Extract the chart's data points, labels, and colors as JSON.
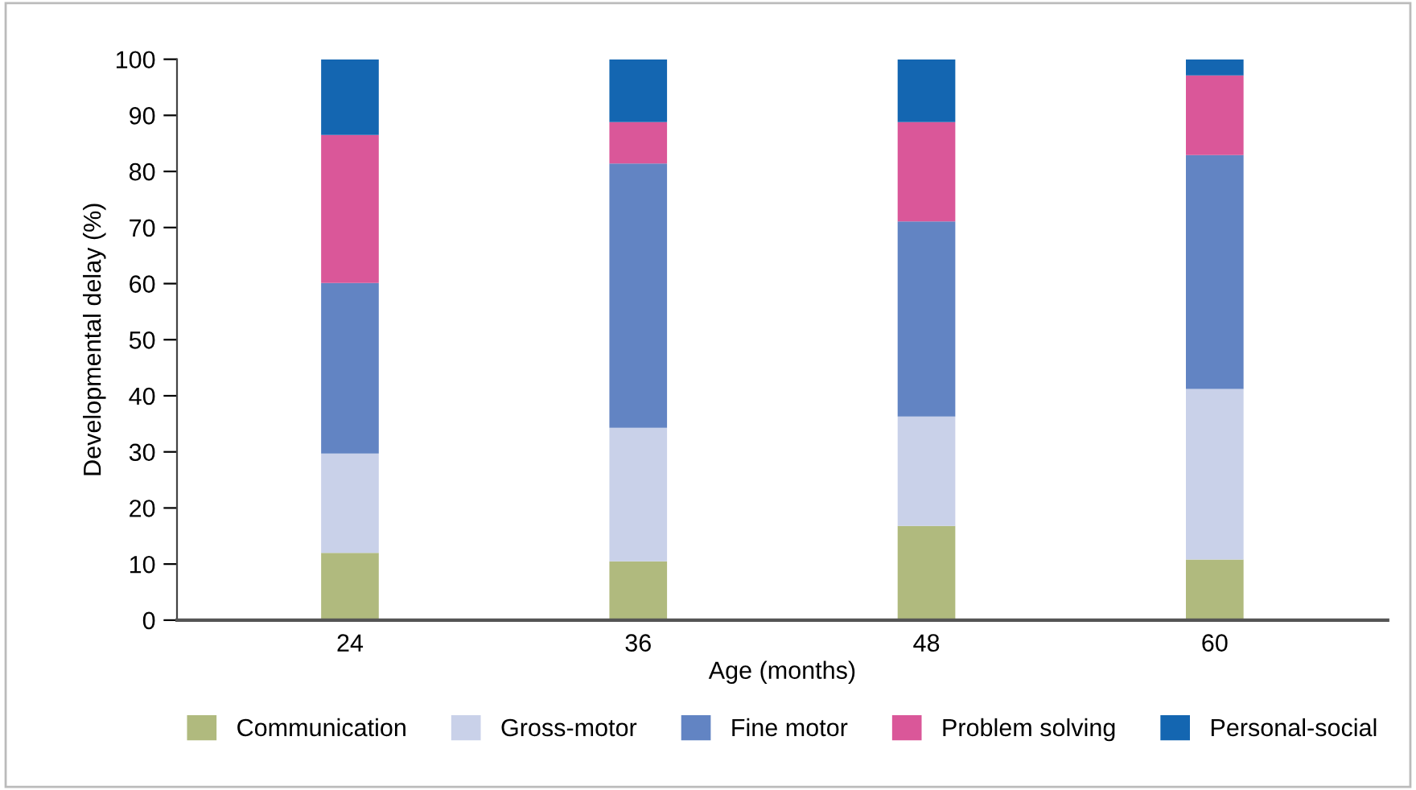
{
  "chart_data": {
    "type": "bar",
    "stacked": true,
    "xlabel": "Age (months)",
    "ylabel": "Developmental delay (%)",
    "categories": [
      "24",
      "36",
      "48",
      "60"
    ],
    "series": [
      {
        "name": "Communication",
        "color": "#b0ba7e",
        "values": [
          12.0,
          10.5,
          16.8,
          10.8
        ]
      },
      {
        "name": "Gross-motor",
        "color": "#c9d1e9",
        "values": [
          17.7,
          23.8,
          19.5,
          30.4
        ]
      },
      {
        "name": "Fine motor",
        "color": "#6284c3",
        "values": [
          30.4,
          47.1,
          34.8,
          41.7
        ]
      },
      {
        "name": "Problem solving",
        "color": "#da5799",
        "values": [
          26.4,
          7.4,
          17.7,
          14.2
        ]
      },
      {
        "name": "Personal-social",
        "color": "#1466b1",
        "values": [
          13.5,
          11.2,
          11.2,
          2.9
        ]
      }
    ],
    "ylim": [
      0,
      100
    ],
    "yticks": [
      0,
      10,
      20,
      30,
      40,
      50,
      60,
      70,
      80,
      90,
      100
    ],
    "grid": false,
    "legend": "bottom"
  }
}
